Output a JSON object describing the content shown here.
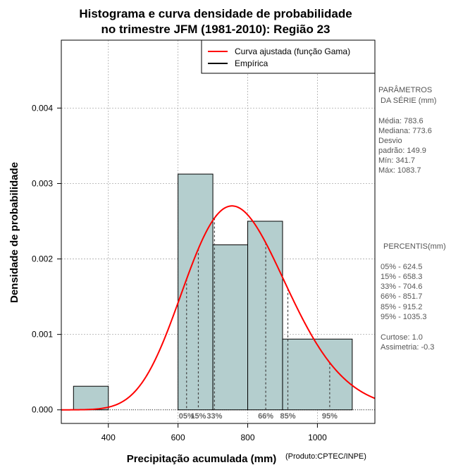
{
  "chart_data": {
    "type": "bar",
    "title_line1": "Histograma e curva densidade de probabilidade",
    "title_line2": "no trimestre JFM (1981-2010): Região 23",
    "xlabel": "Precipitação acumulada (mm)",
    "ylabel": "Densidade de probabilidade",
    "credit": "(Produto:CPTEC/INPE)",
    "xlim": [
      265,
      1165
    ],
    "ylim": [
      -0.00018,
      0.0049
    ],
    "x_ticks": [
      400,
      600,
      800,
      1000
    ],
    "y_ticks": [
      0.0,
      0.001,
      0.002,
      0.003,
      0.004
    ],
    "y_tick_labels": [
      "0.000",
      "0.001",
      "0.002",
      "0.003",
      "0.004"
    ],
    "bins": [
      {
        "start": 300,
        "end": 400,
        "density": 0.000313
      },
      {
        "start": 400,
        "end": 600,
        "density": 0.0
      },
      {
        "start": 600,
        "end": 700,
        "density": 0.003125
      },
      {
        "start": 700,
        "end": 800,
        "density": 0.002187
      },
      {
        "start": 800,
        "end": 900,
        "density": 0.0025
      },
      {
        "start": 900,
        "end": 1100,
        "density": 0.000938
      }
    ],
    "gamma_fit": {
      "mean": 783.6,
      "sd": 149.9
    },
    "legend": [
      {
        "label": "Curva ajustada (função Gama)",
        "color": "#ff0000"
      },
      {
        "label": "Empírica",
        "color": "#000000"
      }
    ],
    "percentiles": [
      {
        "label": "05%",
        "value": 624.5
      },
      {
        "label": "15%",
        "value": 658.3
      },
      {
        "label": "33%",
        "value": 704.6
      },
      {
        "label": "66%",
        "value": 851.7
      },
      {
        "label": "85%",
        "value": 915.2
      },
      {
        "label": "95%",
        "value": 1035.3
      }
    ],
    "bar_color": "#b4cece",
    "curve_color": "#ff0000"
  },
  "params": {
    "header1": "PARÂMETROS",
    "header2": "DA SÉRIE (mm)",
    "lines": [
      "Média:  783.6",
      "Mediana:  773.6",
      "Desvio",
      "padrão:  149.9",
      "Mín:  341.7",
      "Máx:  1083.7"
    ]
  },
  "percentis": {
    "header": "PERCENTIS(mm)",
    "lines": [
      "05% -   624.5",
      "15% -   658.3",
      "33% -   704.6",
      "66% -   851.7",
      "85% -   915.2",
      "95% -   1035.3"
    ]
  },
  "stats": {
    "lines": [
      "Curtose:  1.0",
      "Assimetria:  -0.3"
    ]
  }
}
